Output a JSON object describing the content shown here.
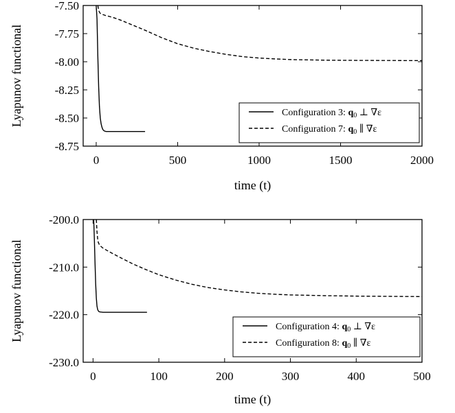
{
  "chart_data": [
    {
      "type": "line",
      "xlabel": "time (t)",
      "ylabel": "Lyapunov functional",
      "xlim": [
        -80,
        2000
      ],
      "ylim": [
        -8.75,
        -7.5
      ],
      "xticks": [
        0,
        500,
        1000,
        1500,
        2000
      ],
      "xtick_labels": [
        "0",
        "500",
        "1000",
        "1500",
        "2000"
      ],
      "yticks": [
        -7.5,
        -7.75,
        -8.0,
        -8.25,
        -8.5,
        -8.75
      ],
      "ytick_labels": [
        "-7.50",
        "-7.75",
        "-8.00",
        "-8.25",
        "-8.50",
        "-8.75"
      ],
      "legend_position": "bottom-right",
      "series": [
        {
          "name": "Configuration 3: q₀ ⊥ ∇ε",
          "style": "solid",
          "x": [
            0,
            5,
            10,
            15,
            20,
            25,
            30,
            35,
            40,
            45,
            50,
            60,
            70,
            80,
            100,
            150,
            200,
            250,
            300
          ],
          "y": [
            -7.5,
            -7.62,
            -7.95,
            -8.22,
            -8.4,
            -8.5,
            -8.55,
            -8.58,
            -8.6,
            -8.61,
            -8.615,
            -8.62,
            -8.62,
            -8.62,
            -8.62,
            -8.62,
            -8.62,
            -8.62,
            -8.62
          ]
        },
        {
          "name": "Configuration 7: q₀ ∥ ∇ε",
          "style": "dashed",
          "x": [
            10,
            15,
            20,
            25,
            40,
            60,
            100,
            150,
            200,
            300,
            400,
            500,
            600,
            700,
            800,
            900,
            1000,
            1100,
            1200,
            1400,
            1600,
            1800,
            2000
          ],
          "y": [
            -7.5,
            -7.54,
            -7.56,
            -7.57,
            -7.58,
            -7.59,
            -7.605,
            -7.63,
            -7.66,
            -7.72,
            -7.785,
            -7.84,
            -7.88,
            -7.91,
            -7.935,
            -7.955,
            -7.967,
            -7.975,
            -7.981,
            -7.986,
            -7.988,
            -7.989,
            -7.99
          ]
        }
      ]
    },
    {
      "type": "line",
      "xlabel": "time (t)",
      "ylabel": "Lyapunov functional",
      "xlim": [
        -15,
        500
      ],
      "ylim": [
        -230,
        -200
      ],
      "xticks": [
        0,
        100,
        200,
        300,
        400,
        500
      ],
      "xtick_labels": [
        "0",
        "100",
        "200",
        "300",
        "400",
        "500"
      ],
      "yticks": [
        -200,
        -210,
        -220,
        -230
      ],
      "ytick_labels": [
        "-200.0",
        "-210.0",
        "-220.0",
        "-230.0"
      ],
      "legend_position": "bottom-right",
      "series": [
        {
          "name": "Configuration 4: q₀ ⊥ ∇ε",
          "style": "solid",
          "x": [
            1,
            2,
            3,
            4,
            5,
            6,
            7,
            8,
            9,
            10,
            12,
            15,
            20,
            40,
            60,
            82
          ],
          "y": [
            -200,
            -204,
            -209,
            -213.5,
            -216.5,
            -218.2,
            -218.9,
            -219.2,
            -219.35,
            -219.4,
            -219.45,
            -219.5,
            -219.5,
            -219.5,
            -219.5,
            -219.5
          ]
        },
        {
          "name": "Configuration 8: q₀ ∥ ∇ε",
          "style": "dashed",
          "x": [
            5,
            6,
            7,
            8,
            10,
            15,
            25,
            40,
            60,
            80,
            100,
            125,
            150,
            175,
            200,
            225,
            250,
            275,
            300,
            350,
            400,
            450,
            500
          ],
          "y": [
            -200,
            -202.5,
            -204,
            -204.8,
            -205.4,
            -206,
            -206.8,
            -207.9,
            -209.3,
            -210.5,
            -211.6,
            -212.7,
            -213.6,
            -214.3,
            -214.8,
            -215.2,
            -215.5,
            -215.7,
            -215.85,
            -216,
            -216.1,
            -216.15,
            -216.2
          ]
        }
      ]
    }
  ]
}
